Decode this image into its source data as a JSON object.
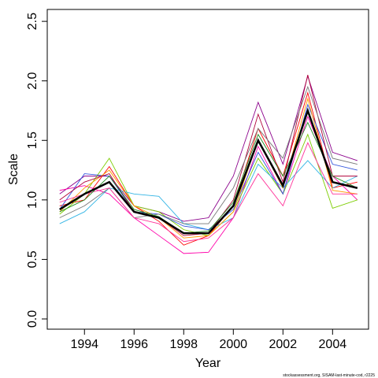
{
  "chart_data": {
    "type": "line",
    "x_label": "Year",
    "y_label": "Scale",
    "footer": "stockassessment.org, SISAM-last-minute-cod, r2225",
    "x": [
      1993,
      1994,
      1995,
      1996,
      1997,
      1998,
      1999,
      2000,
      2001,
      2002,
      2003,
      2004,
      2005
    ],
    "xlim": [
      1992.5,
      2005.45
    ],
    "ylim": [
      -0.086,
      2.6
    ],
    "xticks": [
      1994,
      1996,
      1998,
      2000,
      2002,
      2004
    ],
    "yticks": [
      {
        "value": 0,
        "label": "0.0"
      },
      0.5,
      {
        "value": 1,
        "label": "1.0"
      },
      1.5,
      {
        "value": 2,
        "label": "2.0"
      },
      2.5
    ],
    "series": [
      {
        "color": "#8b008b",
        "values": [
          1.05,
          1.2,
          1.2,
          0.95,
          0.9,
          0.82,
          0.85,
          1.2,
          1.82,
          1.3,
          2.04,
          1.4,
          1.33
        ]
      },
      {
        "color": "#ff0000",
        "values": [
          0.95,
          1.0,
          1.28,
          0.95,
          0.82,
          0.62,
          0.7,
          0.95,
          1.6,
          1.2,
          1.9,
          1.1,
          1.15
        ]
      },
      {
        "color": "#ff00aa",
        "values": [
          1.08,
          1.12,
          1.05,
          0.85,
          0.7,
          0.55,
          0.56,
          0.85,
          1.45,
          1.05,
          1.7,
          1.2,
          1.0
        ]
      },
      {
        "color": "#7ccd00",
        "values": [
          0.88,
          1.05,
          1.35,
          0.95,
          0.9,
          0.75,
          0.7,
          0.9,
          1.35,
          1.05,
          1.55,
          0.93,
          1.0
        ]
      },
      {
        "color": "#33b5e5",
        "values": [
          0.8,
          0.9,
          1.1,
          1.05,
          1.03,
          0.8,
          0.75,
          0.85,
          1.3,
          1.1,
          1.33,
          1.1,
          1.2
        ]
      },
      {
        "color": "#3355dd",
        "values": [
          0.92,
          1.22,
          1.2,
          0.9,
          0.88,
          0.78,
          0.75,
          0.92,
          1.4,
          1.05,
          1.8,
          1.3,
          1.25
        ]
      },
      {
        "color": "#ff9900",
        "values": [
          0.9,
          1.1,
          1.25,
          0.95,
          0.85,
          0.68,
          0.7,
          0.9,
          1.5,
          1.1,
          1.85,
          1.08,
          1.05
        ]
      },
      {
        "color": "#b0003a",
        "values": [
          1.0,
          1.15,
          1.22,
          0.9,
          0.85,
          0.7,
          0.72,
          1.0,
          1.72,
          1.15,
          2.05,
          1.2,
          1.2
        ]
      },
      {
        "color": "#777777",
        "values": [
          0.85,
          0.95,
          1.1,
          0.85,
          0.88,
          0.8,
          0.8,
          1.1,
          1.6,
          1.35,
          1.95,
          1.35,
          1.3
        ]
      },
      {
        "color": "#ff3399",
        "values": [
          0.98,
          1.05,
          1.1,
          0.85,
          0.8,
          0.65,
          0.68,
          0.85,
          1.22,
          0.95,
          1.48,
          1.05,
          1.05
        ]
      },
      {
        "color": "#228b22",
        "values": [
          0.9,
          1.0,
          1.2,
          0.92,
          0.86,
          0.72,
          0.74,
          0.98,
          1.55,
          1.2,
          1.65,
          1.2,
          1.1
        ]
      },
      {
        "color": "#000000",
        "line_width": 2.5,
        "values": [
          0.92,
          1.05,
          1.15,
          0.9,
          0.85,
          0.72,
          0.72,
          0.95,
          1.5,
          1.12,
          1.75,
          1.15,
          1.1
        ]
      }
    ]
  }
}
